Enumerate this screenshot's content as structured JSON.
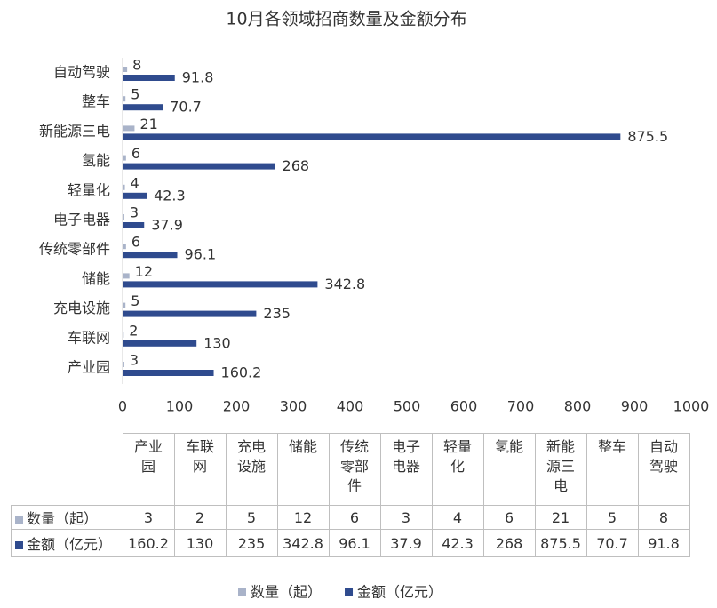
{
  "chart_data": {
    "type": "bar",
    "orientation": "horizontal",
    "title": "10月各领域招商数量及金额分布",
    "categories": [
      "产业园",
      "车联网",
      "充电设施",
      "储能",
      "传统零部件",
      "电子电器",
      "轻量化",
      "氢能",
      "新能源三电",
      "整车",
      "自动驾驶"
    ],
    "series": [
      {
        "name": "数量（起）",
        "color": "#a9b3c9",
        "values": [
          3,
          2,
          5,
          12,
          6,
          3,
          4,
          6,
          21,
          5,
          8
        ]
      },
      {
        "name": "金额（亿元）",
        "color": "#2f4b8e",
        "values": [
          160.2,
          130,
          235,
          342.8,
          96.1,
          37.9,
          42.3,
          268,
          875.5,
          70.7,
          91.8
        ]
      }
    ],
    "xlim": [
      0,
      1000
    ],
    "xticks": [
      0,
      100,
      200,
      300,
      400,
      500,
      600,
      700,
      800,
      900,
      1000
    ],
    "grid": false,
    "legend": "bottom",
    "data_table": true
  }
}
